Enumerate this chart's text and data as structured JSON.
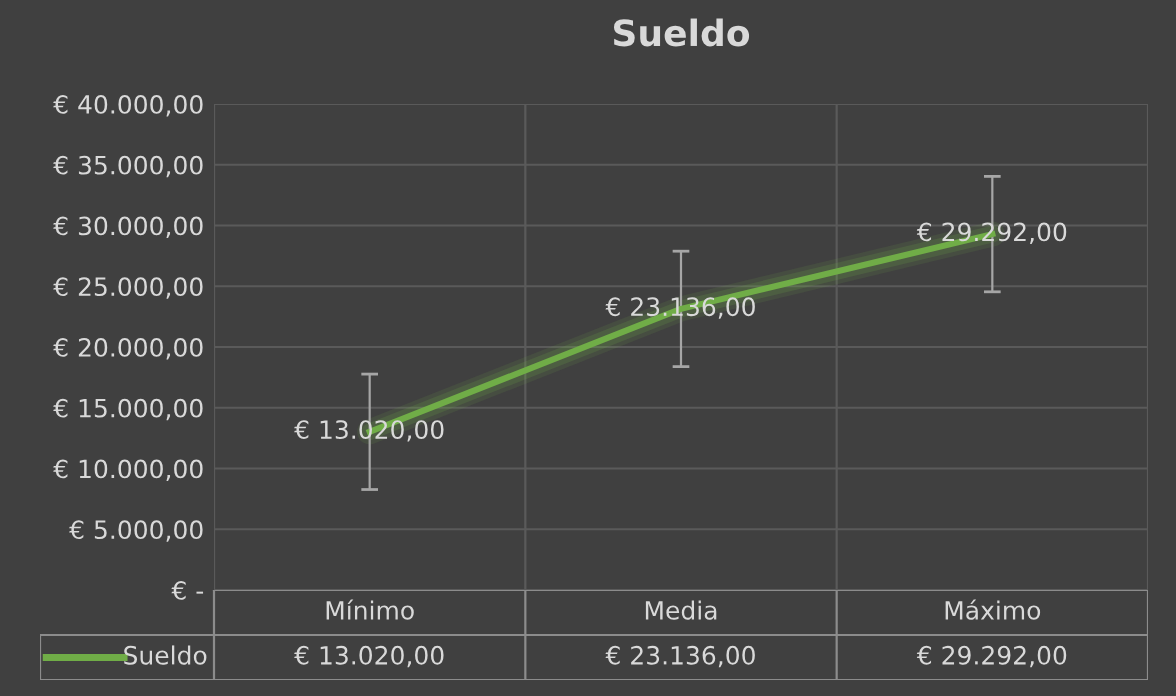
{
  "chart_data": {
    "type": "line",
    "title": "Sueldo",
    "categories": [
      "Mínimo",
      "Media",
      "Máximo"
    ],
    "series": [
      {
        "name": "Sueldo",
        "color": "#70ad47",
        "values": [
          13020,
          23136,
          29292
        ],
        "errors": [
          4750,
          4750,
          4750
        ],
        "value_labels": [
          "€ 13.020,00",
          "€ 23.136,00",
          "€ 29.292,00"
        ]
      }
    ],
    "ylim": [
      0,
      40000
    ],
    "yticks": [
      {
        "value": 0,
        "label": "€ -"
      },
      {
        "value": 5000,
        "label": "€ 5.000,00"
      },
      {
        "value": 10000,
        "label": "€ 10.000,00"
      },
      {
        "value": 15000,
        "label": "€ 15.000,00"
      },
      {
        "value": 20000,
        "label": "€ 20.000,00"
      },
      {
        "value": 25000,
        "label": "€ 25.000,00"
      },
      {
        "value": 30000,
        "label": "€ 30.000,00"
      },
      {
        "value": 35000,
        "label": "€ 35.000,00"
      },
      {
        "value": 40000,
        "label": "€ 40.000,00"
      }
    ],
    "grid": true,
    "legend": "bottom",
    "marker": "none",
    "line_style": "solid"
  }
}
